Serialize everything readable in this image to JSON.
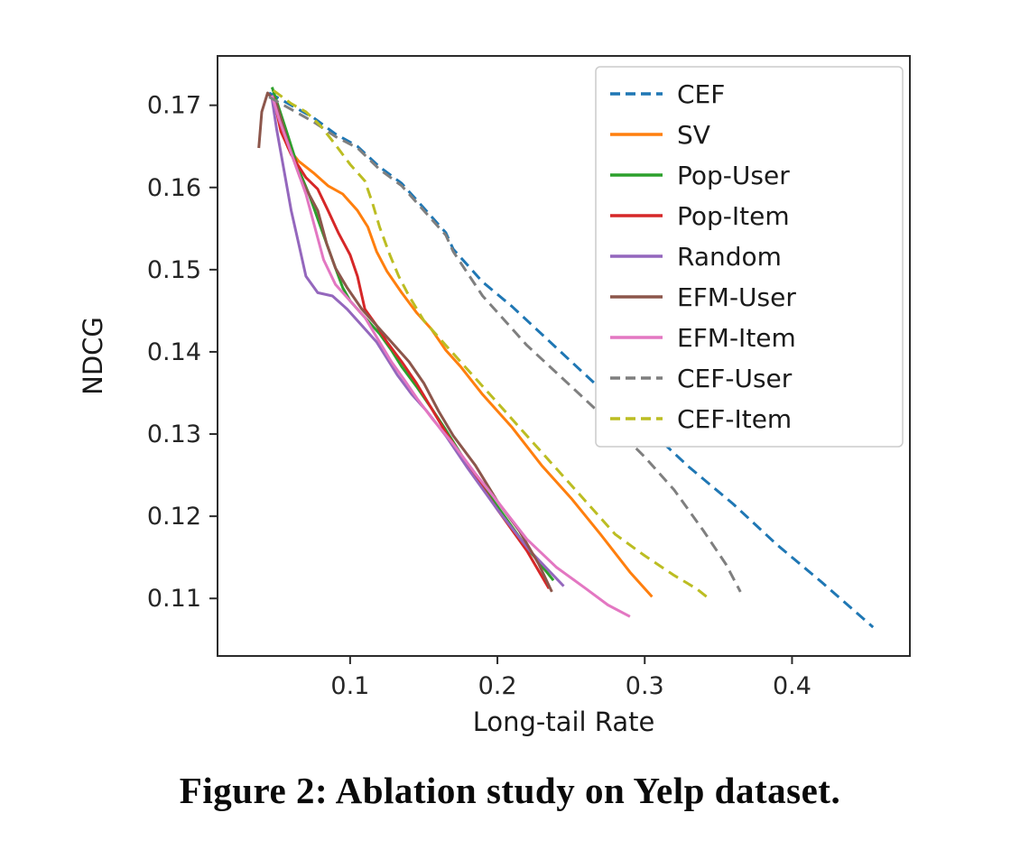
{
  "figure": {
    "caption": "Figure 2: Ablation study on Yelp dataset."
  },
  "chart_data": {
    "type": "line",
    "title": "",
    "xlabel": "Long-tail Rate",
    "ylabel": "NDCG",
    "xlim": [
      0.01,
      0.48
    ],
    "ylim": [
      0.103,
      0.176
    ],
    "grid": false,
    "legend_position": "upper right",
    "xticks": {
      "values": [
        0.1,
        0.2,
        0.3,
        0.4
      ],
      "labels": [
        "0.1",
        "0.2",
        "0.3",
        "0.4"
      ]
    },
    "yticks": {
      "values": [
        0.11,
        0.12,
        0.13,
        0.14,
        0.15,
        0.16,
        0.17
      ],
      "labels": [
        "0.11",
        "0.12",
        "0.13",
        "0.14",
        "0.15",
        "0.16",
        "0.17"
      ]
    },
    "series": [
      {
        "name": "CEF",
        "color": "#1f77b4",
        "dashed": true,
        "points": [
          [
            0.045,
            0.1715
          ],
          [
            0.05,
            0.171
          ],
          [
            0.06,
            0.17
          ],
          [
            0.075,
            0.1685
          ],
          [
            0.09,
            0.1665
          ],
          [
            0.105,
            0.165
          ],
          [
            0.12,
            0.1625
          ],
          [
            0.135,
            0.1605
          ],
          [
            0.145,
            0.1585
          ],
          [
            0.155,
            0.1565
          ],
          [
            0.165,
            0.1545
          ],
          [
            0.17,
            0.1525
          ],
          [
            0.18,
            0.1505
          ],
          [
            0.19,
            0.1485
          ],
          [
            0.21,
            0.1455
          ],
          [
            0.24,
            0.1405
          ],
          [
            0.27,
            0.1355
          ],
          [
            0.3,
            0.131
          ],
          [
            0.33,
            0.126
          ],
          [
            0.36,
            0.1215
          ],
          [
            0.39,
            0.1165
          ],
          [
            0.42,
            0.112
          ],
          [
            0.455,
            0.1065
          ]
        ]
      },
      {
        "name": "SV",
        "color": "#ff7f0e",
        "dashed": false,
        "points": [
          [
            0.048,
            0.1712
          ],
          [
            0.053,
            0.1672
          ],
          [
            0.058,
            0.1648
          ],
          [
            0.065,
            0.1632
          ],
          [
            0.075,
            0.1618
          ],
          [
            0.085,
            0.1602
          ],
          [
            0.095,
            0.1592
          ],
          [
            0.105,
            0.1572
          ],
          [
            0.112,
            0.1552
          ],
          [
            0.118,
            0.1522
          ],
          [
            0.125,
            0.1498
          ],
          [
            0.135,
            0.1472
          ],
          [
            0.145,
            0.1448
          ],
          [
            0.155,
            0.1428
          ],
          [
            0.165,
            0.1402
          ],
          [
            0.175,
            0.1382
          ],
          [
            0.19,
            0.1348
          ],
          [
            0.21,
            0.1308
          ],
          [
            0.23,
            0.1262
          ],
          [
            0.25,
            0.1222
          ],
          [
            0.27,
            0.1178
          ],
          [
            0.29,
            0.1132
          ],
          [
            0.305,
            0.1102
          ]
        ]
      },
      {
        "name": "Pop-User",
        "color": "#2ca02c",
        "dashed": false,
        "points": [
          [
            0.047,
            0.1722
          ],
          [
            0.052,
            0.1695
          ],
          [
            0.058,
            0.1662
          ],
          [
            0.065,
            0.1622
          ],
          [
            0.072,
            0.1592
          ],
          [
            0.08,
            0.1552
          ],
          [
            0.088,
            0.1512
          ],
          [
            0.095,
            0.1478
          ],
          [
            0.1,
            0.1462
          ],
          [
            0.11,
            0.1442
          ],
          [
            0.12,
            0.1422
          ],
          [
            0.128,
            0.1402
          ],
          [
            0.135,
            0.1382
          ],
          [
            0.145,
            0.1358
          ],
          [
            0.155,
            0.1332
          ],
          [
            0.165,
            0.1305
          ],
          [
            0.18,
            0.1262
          ],
          [
            0.2,
            0.1212
          ],
          [
            0.22,
            0.1162
          ],
          [
            0.238,
            0.1122
          ]
        ]
      },
      {
        "name": "Pop-Item",
        "color": "#d62728",
        "dashed": false,
        "points": [
          [
            0.048,
            0.171
          ],
          [
            0.053,
            0.1668
          ],
          [
            0.06,
            0.164
          ],
          [
            0.07,
            0.1612
          ],
          [
            0.078,
            0.1598
          ],
          [
            0.085,
            0.1572
          ],
          [
            0.092,
            0.1545
          ],
          [
            0.1,
            0.1518
          ],
          [
            0.105,
            0.1492
          ],
          [
            0.11,
            0.1452
          ],
          [
            0.118,
            0.1432
          ],
          [
            0.125,
            0.1412
          ],
          [
            0.135,
            0.1388
          ],
          [
            0.145,
            0.1362
          ],
          [
            0.155,
            0.1332
          ],
          [
            0.165,
            0.1302
          ],
          [
            0.18,
            0.1262
          ],
          [
            0.2,
            0.1208
          ],
          [
            0.22,
            0.1158
          ],
          [
            0.235,
            0.1112
          ]
        ]
      },
      {
        "name": "Random",
        "color": "#9467bd",
        "dashed": false,
        "points": [
          [
            0.047,
            0.1708
          ],
          [
            0.05,
            0.1672
          ],
          [
            0.053,
            0.1642
          ],
          [
            0.057,
            0.1602
          ],
          [
            0.06,
            0.1572
          ],
          [
            0.065,
            0.1532
          ],
          [
            0.07,
            0.1492
          ],
          [
            0.078,
            0.1472
          ],
          [
            0.088,
            0.1468
          ],
          [
            0.098,
            0.1452
          ],
          [
            0.108,
            0.1432
          ],
          [
            0.118,
            0.1412
          ],
          [
            0.125,
            0.1392
          ],
          [
            0.132,
            0.1372
          ],
          [
            0.142,
            0.1348
          ],
          [
            0.152,
            0.1328
          ],
          [
            0.165,
            0.1298
          ],
          [
            0.18,
            0.1258
          ],
          [
            0.2,
            0.1208
          ],
          [
            0.222,
            0.1158
          ],
          [
            0.245,
            0.1115
          ]
        ]
      },
      {
        "name": "EFM-User",
        "color": "#8c564b",
        "dashed": false,
        "points": [
          [
            0.038,
            0.1648
          ],
          [
            0.04,
            0.1692
          ],
          [
            0.044,
            0.1715
          ],
          [
            0.05,
            0.1702
          ],
          [
            0.055,
            0.1672
          ],
          [
            0.06,
            0.1642
          ],
          [
            0.066,
            0.1612
          ],
          [
            0.072,
            0.1592
          ],
          [
            0.078,
            0.1572
          ],
          [
            0.084,
            0.1532
          ],
          [
            0.09,
            0.1502
          ],
          [
            0.098,
            0.1478
          ],
          [
            0.108,
            0.1452
          ],
          [
            0.118,
            0.1432
          ],
          [
            0.128,
            0.1412
          ],
          [
            0.14,
            0.1388
          ],
          [
            0.15,
            0.1362
          ],
          [
            0.16,
            0.1328
          ],
          [
            0.17,
            0.1298
          ],
          [
            0.185,
            0.1262
          ],
          [
            0.2,
            0.1218
          ],
          [
            0.215,
            0.1182
          ],
          [
            0.228,
            0.1142
          ],
          [
            0.237,
            0.1108
          ]
        ]
      },
      {
        "name": "EFM-Item",
        "color": "#e377c2",
        "dashed": false,
        "points": [
          [
            0.047,
            0.1712
          ],
          [
            0.052,
            0.1682
          ],
          [
            0.058,
            0.1652
          ],
          [
            0.064,
            0.1622
          ],
          [
            0.07,
            0.1592
          ],
          [
            0.076,
            0.1552
          ],
          [
            0.082,
            0.1512
          ],
          [
            0.09,
            0.1482
          ],
          [
            0.1,
            0.1462
          ],
          [
            0.11,
            0.1442
          ],
          [
            0.12,
            0.1412
          ],
          [
            0.128,
            0.1388
          ],
          [
            0.136,
            0.1368
          ],
          [
            0.146,
            0.1342
          ],
          [
            0.156,
            0.1318
          ],
          [
            0.17,
            0.1288
          ],
          [
            0.185,
            0.1252
          ],
          [
            0.2,
            0.1218
          ],
          [
            0.22,
            0.1172
          ],
          [
            0.24,
            0.1138
          ],
          [
            0.26,
            0.1112
          ],
          [
            0.275,
            0.1092
          ],
          [
            0.29,
            0.1078
          ]
        ]
      },
      {
        "name": "CEF-User",
        "color": "#7f7f7f",
        "dashed": true,
        "points": [
          [
            0.045,
            0.171
          ],
          [
            0.06,
            0.1695
          ],
          [
            0.075,
            0.168
          ],
          [
            0.09,
            0.1662
          ],
          [
            0.105,
            0.1648
          ],
          [
            0.12,
            0.1622
          ],
          [
            0.135,
            0.1602
          ],
          [
            0.145,
            0.1582
          ],
          [
            0.155,
            0.1562
          ],
          [
            0.165,
            0.1542
          ],
          [
            0.17,
            0.1522
          ],
          [
            0.18,
            0.1495
          ],
          [
            0.19,
            0.1468
          ],
          [
            0.2,
            0.1448
          ],
          [
            0.22,
            0.1408
          ],
          [
            0.25,
            0.1358
          ],
          [
            0.28,
            0.1308
          ],
          [
            0.3,
            0.1272
          ],
          [
            0.32,
            0.1232
          ],
          [
            0.34,
            0.1182
          ],
          [
            0.355,
            0.1142
          ],
          [
            0.365,
            0.1108
          ]
        ]
      },
      {
        "name": "CEF-Item",
        "color": "#bcbd22",
        "dashed": true,
        "points": [
          [
            0.048,
            0.1718
          ],
          [
            0.06,
            0.1702
          ],
          [
            0.07,
            0.1692
          ],
          [
            0.08,
            0.1675
          ],
          [
            0.09,
            0.1652
          ],
          [
            0.1,
            0.1628
          ],
          [
            0.11,
            0.1608
          ],
          [
            0.115,
            0.1582
          ],
          [
            0.12,
            0.1552
          ],
          [
            0.127,
            0.1518
          ],
          [
            0.133,
            0.1492
          ],
          [
            0.14,
            0.1468
          ],
          [
            0.15,
            0.1438
          ],
          [
            0.165,
            0.1408
          ],
          [
            0.18,
            0.1378
          ],
          [
            0.2,
            0.1338
          ],
          [
            0.22,
            0.1298
          ],
          [
            0.24,
            0.1258
          ],
          [
            0.26,
            0.1218
          ],
          [
            0.28,
            0.1178
          ],
          [
            0.3,
            0.1152
          ],
          [
            0.32,
            0.1128
          ],
          [
            0.335,
            0.1112
          ],
          [
            0.345,
            0.1098
          ]
        ]
      }
    ]
  }
}
